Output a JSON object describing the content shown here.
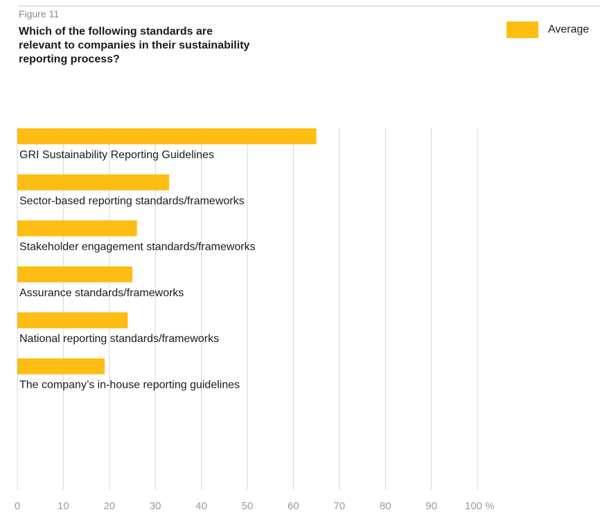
{
  "header": {
    "figure_label": "Figure 11",
    "title": "Which of the following standards are relevant to companies in their sustainability reporting process?"
  },
  "legend": {
    "label": "Average",
    "color": "#fdbd12"
  },
  "colors": {
    "bar": "#fdbd12",
    "grid": "#d6d6d6",
    "axis": "#9a9a9a"
  },
  "chart_data": {
    "type": "bar",
    "orientation": "horizontal",
    "title": "Which of the following standards are relevant to companies in their sustainability reporting process?",
    "categories": [
      "GRI Sustainability Reporting Guidelines",
      "Sector-based reporting standards/frameworks",
      "Stakeholder engagement standards/frameworks",
      "Assurance standards/frameworks",
      "National reporting standards/frameworks",
      "The company’s in-house reporting guidelines"
    ],
    "series": [
      {
        "name": "Average",
        "values": [
          65,
          33,
          26,
          25,
          24,
          19
        ]
      }
    ],
    "xlim": [
      0,
      100
    ],
    "x_ticks": [
      "0",
      "10",
      "20",
      "30",
      "40",
      "50",
      "60",
      "70",
      "80",
      "90",
      "100 %"
    ],
    "grid": true,
    "legend_position": "top-right"
  }
}
